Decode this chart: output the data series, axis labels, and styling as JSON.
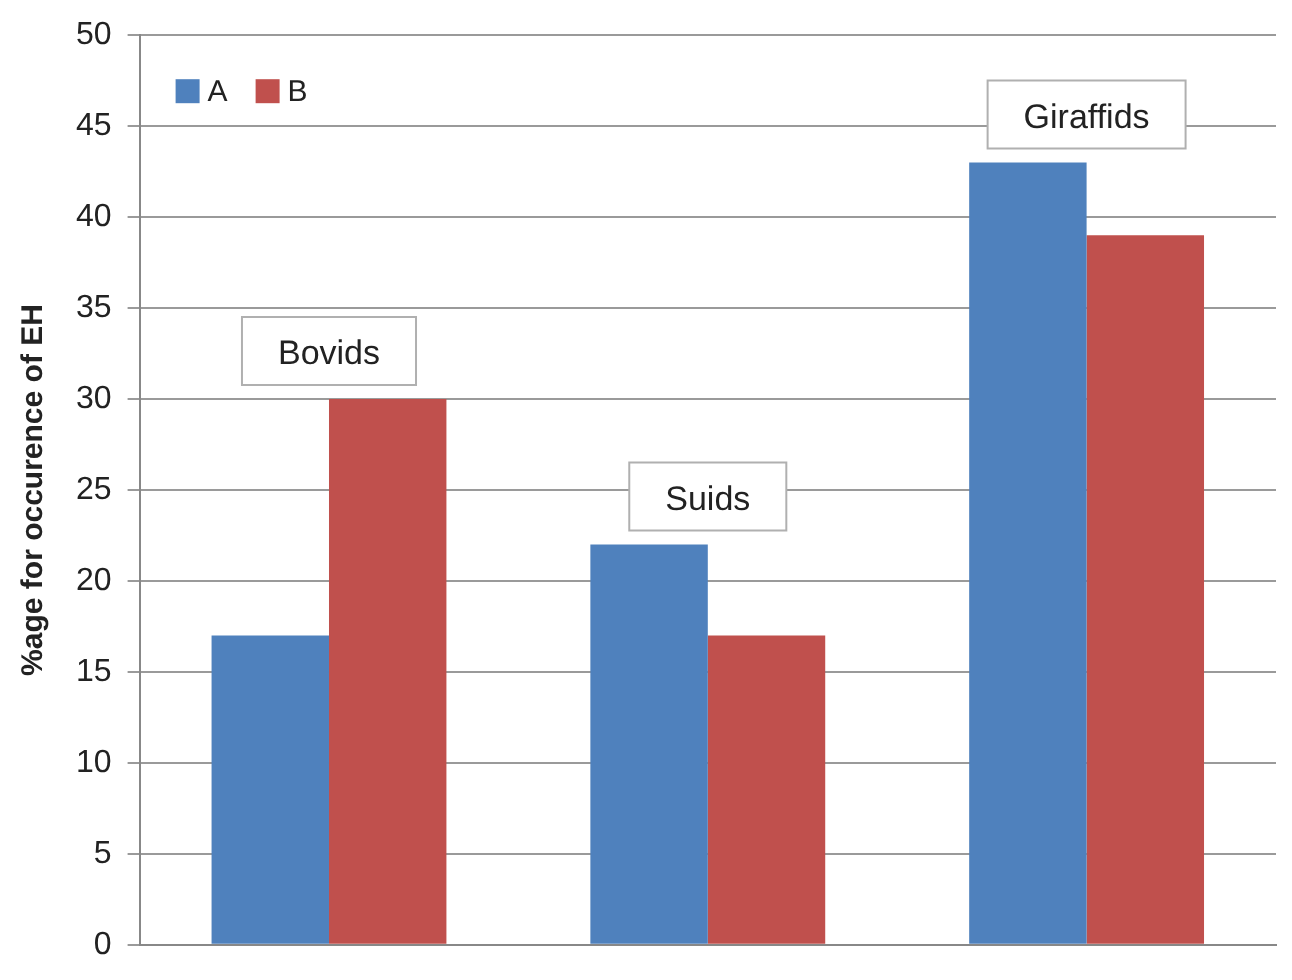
{
  "chart_data": {
    "type": "bar",
    "ylabel": "%age for occurence of EH",
    "categories": [
      "Bovids",
      "Suids",
      "Giraffids"
    ],
    "series": [
      {
        "name": "A",
        "color": "#4f81bd",
        "values": [
          17,
          22,
          43
        ]
      },
      {
        "name": "B",
        "color": "#c0504d",
        "values": [
          30,
          17,
          39
        ]
      }
    ],
    "ylim": [
      0,
      50
    ],
    "yticks": [
      0,
      5,
      10,
      15,
      20,
      25,
      30,
      35,
      40,
      45,
      50
    ],
    "grid": "y",
    "legend": "top left"
  }
}
